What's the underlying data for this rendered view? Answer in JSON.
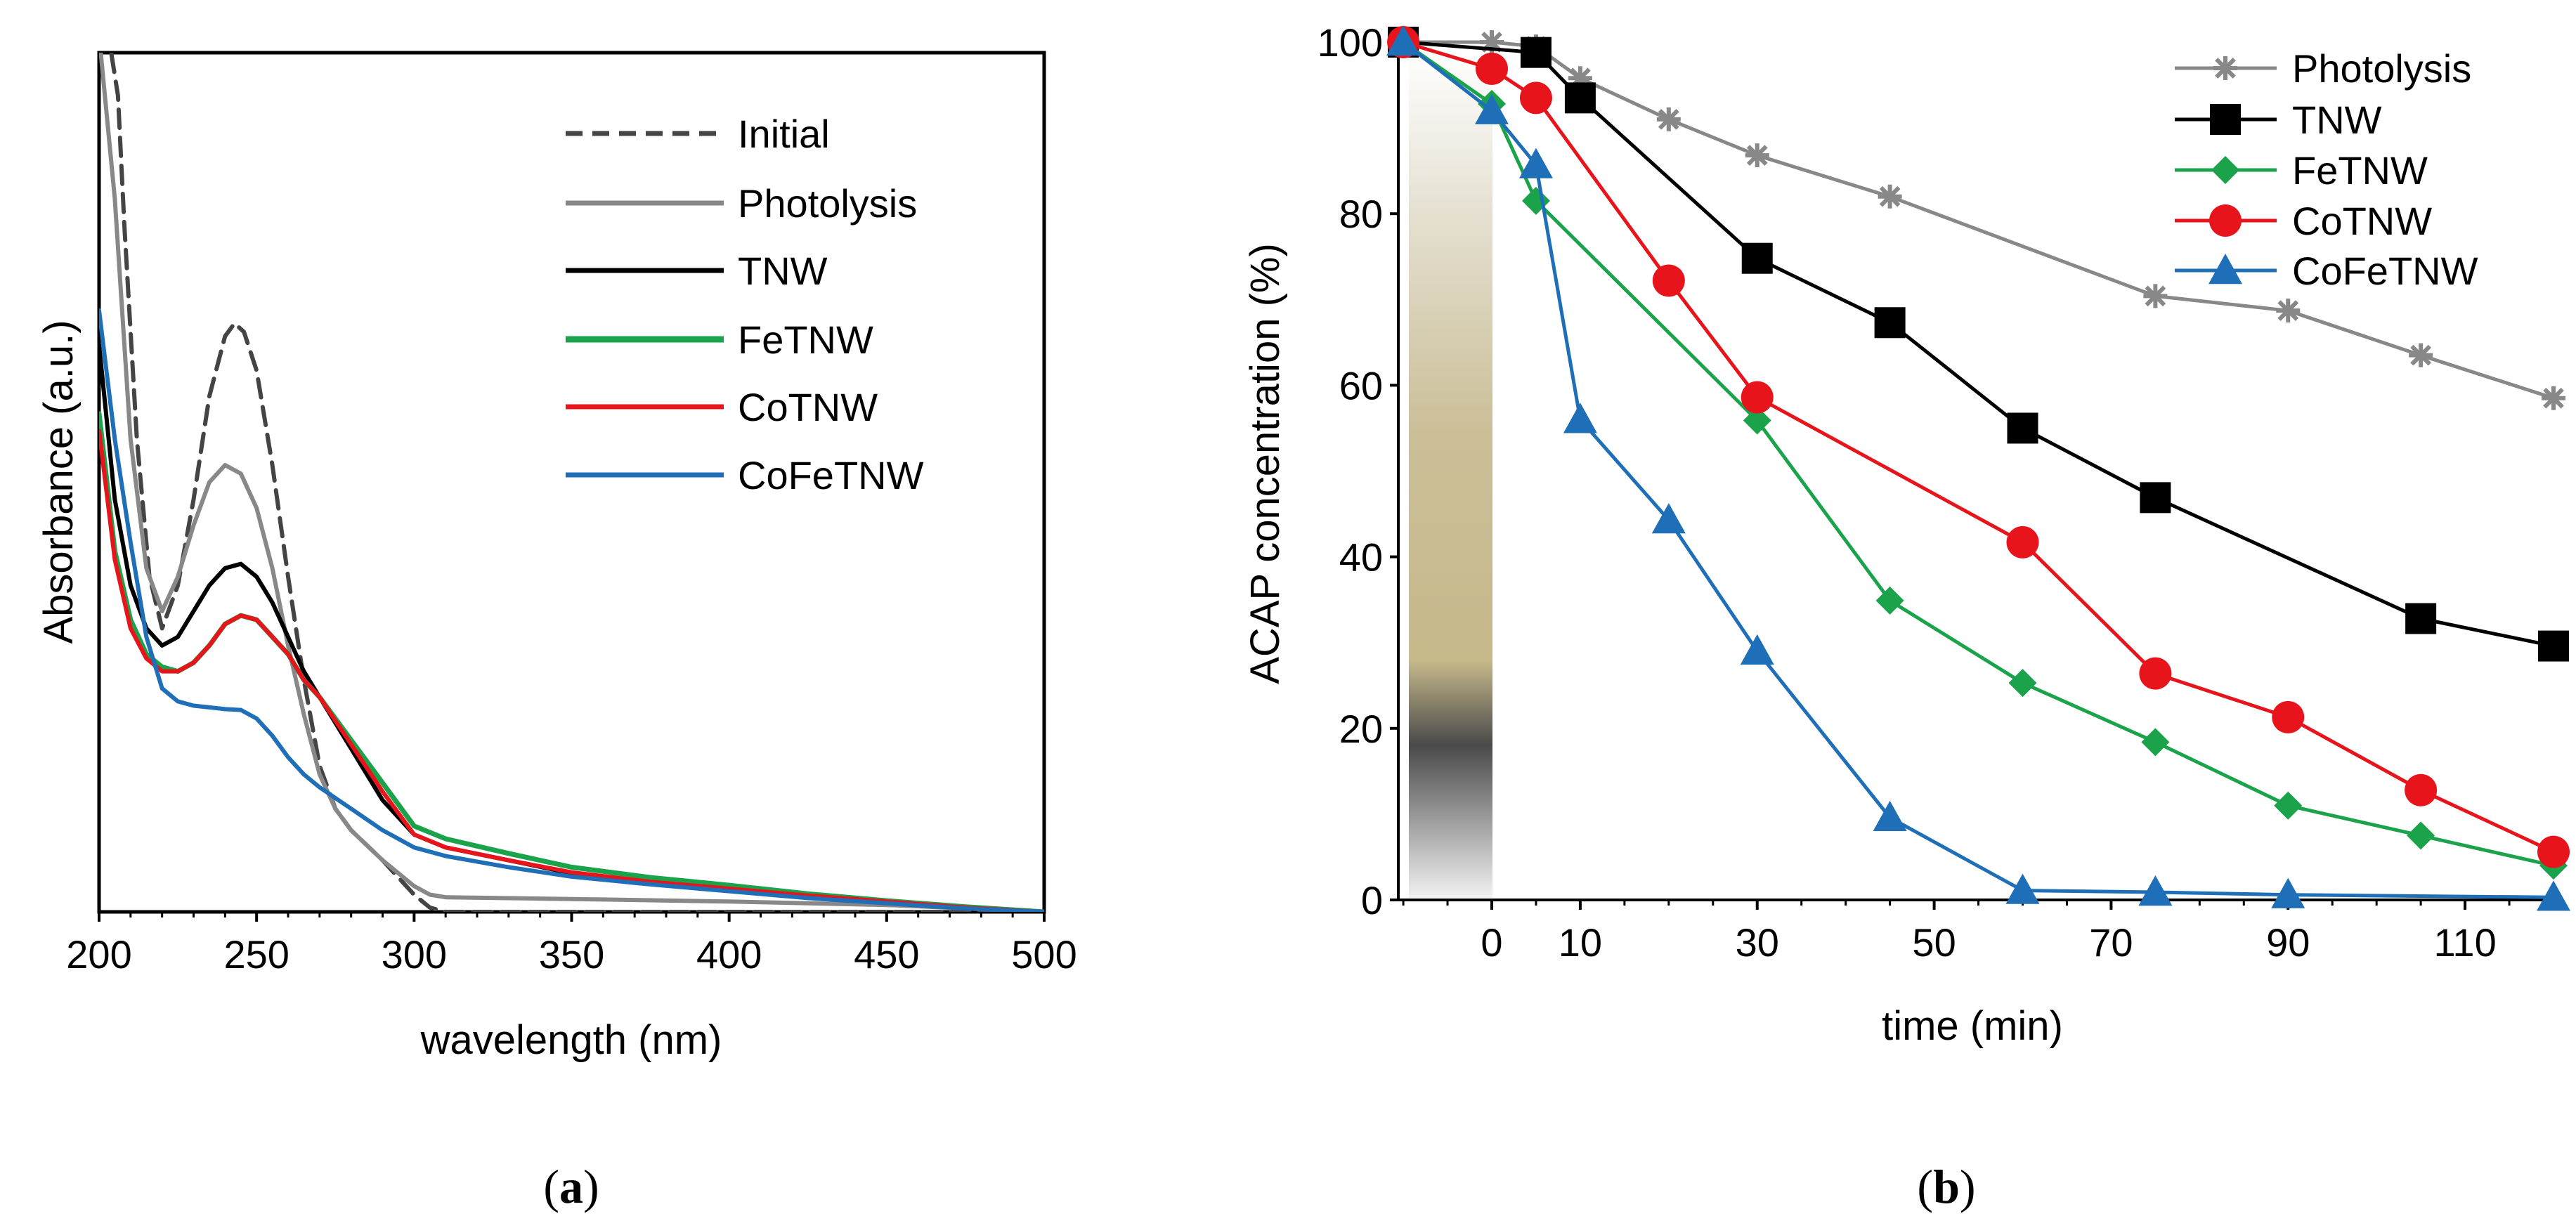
{
  "chart_data": [
    {
      "panel_label_open": "(",
      "panel_label": "a",
      "panel_label_close": ")",
      "type": "line",
      "title": "",
      "xlabel": "wavelength (nm)",
      "ylabel": "Absorbance (a.u.)",
      "xlim": [
        200,
        500
      ],
      "ylim": [
        0,
        1
      ],
      "xticks": [
        "200",
        "250",
        "300",
        "350",
        "400",
        "450",
        "500"
      ],
      "grid": false,
      "legend_position": "top-right",
      "series": [
        {
          "name": "Initial",
          "color": "#444444",
          "dash": "dashed",
          "x": [
            200,
            203,
            206,
            208,
            212,
            216,
            220,
            225,
            230,
            235,
            240,
            243,
            246,
            250,
            255,
            260,
            265,
            270,
            275,
            280,
            290,
            300,
            305,
            310,
            350,
            400,
            450,
            500
          ],
          "y": [
            1.02,
            1.02,
            0.95,
            0.8,
            0.55,
            0.39,
            0.33,
            0.38,
            0.48,
            0.6,
            0.67,
            0.685,
            0.675,
            0.63,
            0.52,
            0.39,
            0.27,
            0.17,
            0.12,
            0.095,
            0.06,
            0.02,
            0.005,
            0.0,
            0.0,
            0.0,
            0.0,
            0.0
          ]
        },
        {
          "name": "Photolysis",
          "color": "#888888",
          "dash": "solid",
          "x": [
            200,
            205,
            210,
            215,
            220,
            225,
            230,
            235,
            240,
            245,
            250,
            255,
            260,
            265,
            270,
            275,
            280,
            290,
            300,
            305,
            310,
            350,
            400,
            450,
            500
          ],
          "y": [
            1.02,
            0.83,
            0.55,
            0.4,
            0.35,
            0.39,
            0.45,
            0.5,
            0.52,
            0.51,
            0.47,
            0.4,
            0.31,
            0.23,
            0.16,
            0.12,
            0.095,
            0.06,
            0.03,
            0.02,
            0.017,
            0.015,
            0.012,
            0.008,
            0.0
          ]
        },
        {
          "name": "TNW",
          "color": "#000000",
          "dash": "solid",
          "x": [
            200,
            205,
            210,
            215,
            220,
            225,
            230,
            235,
            240,
            245,
            250,
            255,
            260,
            265,
            270,
            280,
            290,
            300,
            310,
            330,
            350,
            375,
            400,
            425,
            450,
            475,
            500
          ],
          "y": [
            0.66,
            0.48,
            0.38,
            0.33,
            0.31,
            0.32,
            0.35,
            0.38,
            0.4,
            0.405,
            0.39,
            0.36,
            0.32,
            0.28,
            0.25,
            0.19,
            0.13,
            0.09,
            0.075,
            0.06,
            0.045,
            0.034,
            0.026,
            0.018,
            0.011,
            0.005,
            0.0
          ]
        },
        {
          "name": "FeTNW",
          "color": "#1aa34a",
          "dash": "solid",
          "x": [
            200,
            205,
            210,
            215,
            220,
            225,
            230,
            235,
            240,
            245,
            250,
            255,
            260,
            265,
            270,
            280,
            290,
            300,
            310,
            330,
            350,
            375,
            400,
            425,
            450,
            475,
            500
          ],
          "y": [
            0.58,
            0.42,
            0.34,
            0.3,
            0.285,
            0.28,
            0.29,
            0.31,
            0.335,
            0.345,
            0.34,
            0.32,
            0.3,
            0.27,
            0.25,
            0.2,
            0.15,
            0.1,
            0.085,
            0.068,
            0.052,
            0.04,
            0.031,
            0.021,
            0.013,
            0.006,
            0.0
          ]
        },
        {
          "name": "CoTNW",
          "color": "#e8141c",
          "dash": "solid",
          "x": [
            200,
            205,
            210,
            215,
            220,
            225,
            230,
            235,
            240,
            245,
            250,
            255,
            260,
            265,
            270,
            280,
            290,
            300,
            310,
            330,
            350,
            375,
            400,
            425,
            450,
            475,
            500
          ],
          "y": [
            0.56,
            0.41,
            0.33,
            0.295,
            0.28,
            0.28,
            0.29,
            0.31,
            0.335,
            0.345,
            0.34,
            0.32,
            0.3,
            0.27,
            0.25,
            0.195,
            0.14,
            0.09,
            0.075,
            0.06,
            0.046,
            0.035,
            0.027,
            0.019,
            0.012,
            0.005,
            0.0
          ]
        },
        {
          "name": "CoFeTNW",
          "color": "#1f6fb8",
          "dash": "solid",
          "x": [
            200,
            205,
            210,
            215,
            220,
            225,
            230,
            235,
            240,
            245,
            250,
            255,
            260,
            265,
            270,
            280,
            290,
            300,
            310,
            330,
            350,
            375,
            400,
            425,
            450,
            475,
            500
          ],
          "y": [
            0.7,
            0.55,
            0.43,
            0.32,
            0.26,
            0.245,
            0.24,
            0.238,
            0.236,
            0.235,
            0.225,
            0.205,
            0.18,
            0.16,
            0.145,
            0.12,
            0.095,
            0.075,
            0.065,
            0.052,
            0.041,
            0.032,
            0.024,
            0.016,
            0.01,
            0.004,
            0.0
          ]
        }
      ]
    },
    {
      "panel_label_open": "(",
      "panel_label": "b",
      "panel_label_close": ")",
      "type": "line",
      "title": "",
      "xlabel": "time (min)",
      "ylabel": "ACAP  concentration (%)",
      "xlim": [
        -11,
        120
      ],
      "ylim": [
        0,
        100
      ],
      "xticks": [
        "0",
        "10",
        "30",
        "50",
        "70",
        "90",
        "110"
      ],
      "yticks": [
        "0",
        "20",
        "40",
        "60",
        "80",
        "100"
      ],
      "grid": false,
      "legend_position": "top-right",
      "dark_period": {
        "from": -10,
        "to": 0
      },
      "series": [
        {
          "name": "Photolysis",
          "color": "#888888",
          "marker": "star",
          "x": [
            -10,
            0,
            5,
            10,
            20,
            30,
            45,
            75,
            90,
            105,
            120
          ],
          "y": [
            100,
            100,
            99.5,
            95.8,
            91,
            86.8,
            82,
            70.4,
            68.7,
            63.5,
            58.5
          ]
        },
        {
          "name": "TNW",
          "color": "#000000",
          "marker": "square",
          "x": [
            -10,
            5,
            10,
            30,
            45,
            60,
            75,
            105,
            120
          ],
          "y": [
            100,
            98.8,
            93.5,
            74.8,
            67.3,
            55,
            46.9,
            32.8,
            29.6
          ]
        },
        {
          "name": "FeTNW",
          "color": "#1aa34a",
          "marker": "diamond",
          "x": [
            -10,
            0,
            5,
            30,
            45,
            60,
            75,
            90,
            105,
            120
          ],
          "y": [
            100,
            92.8,
            81.5,
            55.9,
            34.9,
            25.3,
            18.4,
            11,
            7.5,
            4
          ]
        },
        {
          "name": "CoTNW",
          "color": "#e8141c",
          "marker": "circle",
          "x": [
            -10,
            0,
            5,
            20,
            30,
            60,
            75,
            90,
            105,
            120
          ],
          "y": [
            100,
            96.9,
            93.5,
            72.2,
            58.6,
            41.7,
            26.4,
            21.3,
            12.8,
            5.6
          ]
        },
        {
          "name": "CoFeTNW",
          "color": "#1f6fb8",
          "marker": "triangle",
          "x": [
            -10,
            0,
            5,
            10,
            20,
            30,
            45,
            60,
            75,
            90,
            120
          ],
          "y": [
            100,
            92,
            85.7,
            56,
            44.3,
            29,
            9.6,
            1.1,
            0.9,
            0.6,
            0.3
          ]
        }
      ]
    }
  ]
}
